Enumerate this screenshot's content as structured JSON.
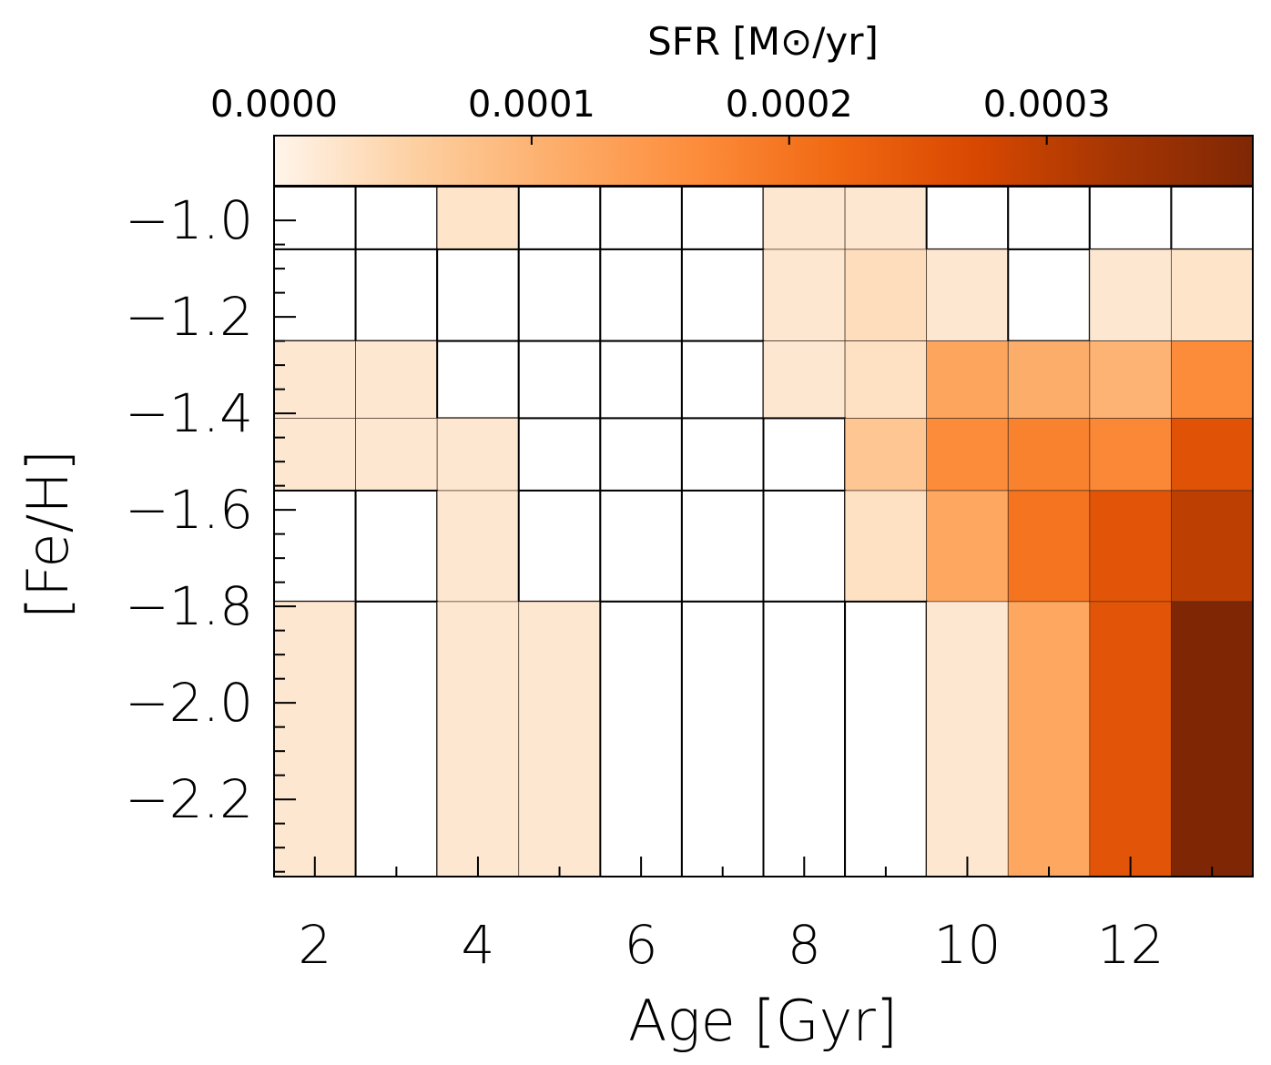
{
  "chart_data": {
    "type": "heatmap",
    "colorbar": {
      "title": "SFR [M⊙/yr]",
      "ticks": [
        "0.0000",
        "0.0001",
        "0.0002",
        "0.0003"
      ],
      "tick_values": [
        0.0,
        0.0001,
        0.0002,
        0.0003
      ],
      "range": [
        0.0,
        0.00038
      ],
      "colors": [
        "#fff5eb",
        "#fdd0a2",
        "#fdae6b",
        "#fd8d3c",
        "#f16913",
        "#d94801",
        "#a63603",
        "#7f2704"
      ]
    },
    "xlabel": "Age [Gyr]",
    "ylabel": "[Fe/H]",
    "xlim": [
      1.5,
      13.5
    ],
    "ylim": [
      -2.36,
      -0.93
    ],
    "xticks": [
      "2",
      "4",
      "6",
      "8",
      "10",
      "12"
    ],
    "xtick_values": [
      2,
      4,
      6,
      8,
      10,
      12
    ],
    "yticks": [
      "−1.0",
      "−1.2",
      "−1.4",
      "−1.6",
      "−1.8",
      "−2.0",
      "−2.2"
    ],
    "ytick_values": [
      -1.0,
      -1.2,
      -1.4,
      -1.6,
      -1.8,
      -2.0,
      -2.2
    ],
    "x_edges": [
      1.5,
      2.5,
      3.5,
      4.5,
      5.5,
      6.5,
      7.5,
      8.5,
      9.5,
      10.5,
      11.5,
      12.5,
      13.5
    ],
    "y_edges": [
      -0.93,
      -1.06,
      -1.25,
      -1.41,
      -1.56,
      -1.79,
      -2.36
    ],
    "rows": [
      {
        "feh_range": [
          -1.06,
          -0.93
        ],
        "sfr": [
          0,
          0,
          2.5e-05,
          0,
          0,
          0,
          2e-05,
          2e-05,
          0,
          0,
          0,
          0
        ]
      },
      {
        "feh_range": [
          -1.25,
          -1.06
        ],
        "sfr": [
          0,
          0,
          0,
          0,
          0,
          0,
          2e-05,
          3.5e-05,
          2e-05,
          0,
          2e-05,
          2.5e-05
        ]
      },
      {
        "feh_range": [
          -1.41,
          -1.25
        ],
        "sfr": [
          2e-05,
          2e-05,
          0,
          0,
          0,
          0,
          2e-05,
          3e-05,
          0.000125,
          0.00011,
          0.0001,
          0.000165
        ]
      },
      {
        "feh_range": [
          -1.56,
          -1.41
        ],
        "sfr": [
          2e-05,
          2e-05,
          2e-05,
          0,
          0,
          0,
          0,
          7e-05,
          0.000165,
          0.00018,
          0.00017,
          0.000255
        ]
      },
      {
        "feh_range": [
          -1.79,
          -1.56
        ],
        "sfr": [
          0,
          0,
          2e-05,
          0,
          0,
          0,
          0,
          3e-05,
          0.00012,
          0.0002,
          0.00025,
          0.0003
        ]
      },
      {
        "feh_range": [
          -2.36,
          -1.79
        ],
        "sfr": [
          2e-05,
          0,
          2e-05,
          2e-05,
          0,
          0,
          0,
          0,
          2e-05,
          0.00012,
          0.00025,
          0.00038
        ]
      }
    ]
  }
}
